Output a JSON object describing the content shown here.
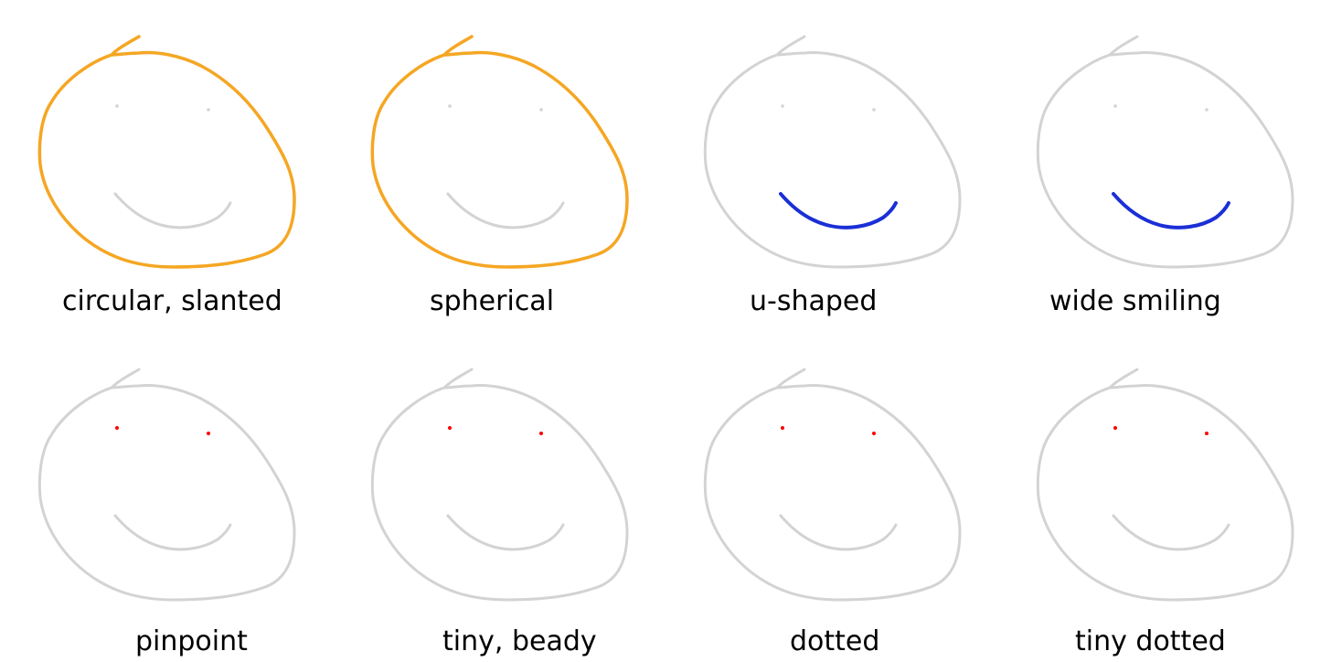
{
  "colors": {
    "base_stroke": "#d3d3d3",
    "head_highlight": "#f5a623",
    "mouth_highlight": "#1a2fd6",
    "eye_highlight": "#ff0000"
  },
  "faces": [
    {
      "label": "circular, slanted",
      "highlight": "head"
    },
    {
      "label": "spherical",
      "highlight": "head"
    },
    {
      "label": "u-shaped",
      "highlight": "mouth"
    },
    {
      "label": "wide smiling",
      "highlight": "mouth"
    },
    {
      "label": "pinpoint",
      "highlight": "eyes"
    },
    {
      "label": "tiny, beady",
      "highlight": "eyes"
    },
    {
      "label": "dotted",
      "highlight": "eyes"
    },
    {
      "label": "tiny dotted",
      "highlight": "eyes"
    }
  ]
}
